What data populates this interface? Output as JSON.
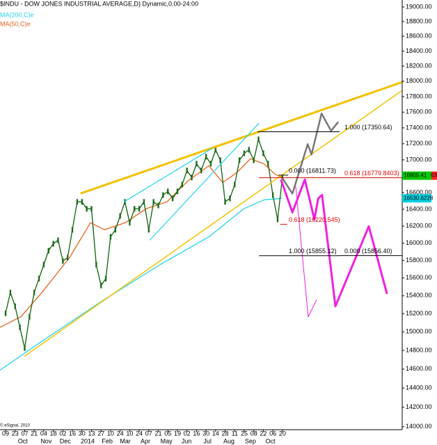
{
  "chart_data": {
    "type": "line",
    "title": "$INDU - DOW JONES INDUSTRIAL AVERAGE,D) Dynamic,0.00-24:00",
    "footer": "© eSignal, 2010",
    "log_y": true,
    "ylim": [
      13970,
      19096
    ],
    "xlim": [
      -1.17,
      83.1
    ],
    "yticks": [
      {
        "value": 14000,
        "label": "14000.00"
      },
      {
        "value": 14200,
        "label": "14200.00"
      },
      {
        "value": 14400,
        "label": "14400.00"
      },
      {
        "value": 14600,
        "label": "14600.00"
      },
      {
        "value": 14800,
        "label": "14800.00"
      },
      {
        "value": 15000,
        "label": "15000.00"
      },
      {
        "value": 15200,
        "label": "15200.00"
      },
      {
        "value": 15400,
        "label": "15400.00"
      },
      {
        "value": 15600,
        "label": "15600.00"
      },
      {
        "value": 15800,
        "label": "15800.00"
      },
      {
        "value": 16000,
        "label": "16000.00"
      },
      {
        "value": 16200,
        "label": "16200.00"
      },
      {
        "value": 16400,
        "label": "16400.00"
      },
      {
        "value": 16600,
        "label": "16600.00"
      },
      {
        "value": 16800,
        "label": "16800.00"
      },
      {
        "value": 17000,
        "label": "17000.00"
      },
      {
        "value": 17200,
        "label": "17200.00"
      },
      {
        "value": 17400,
        "label": "17400.00"
      },
      {
        "value": 17600,
        "label": "17600.00"
      },
      {
        "value": 17800,
        "label": "17800.00"
      },
      {
        "value": 18000,
        "label": "18000.00"
      },
      {
        "value": 18200,
        "label": "18200.00"
      },
      {
        "value": 18400,
        "label": "18400.00"
      },
      {
        "value": 18600,
        "label": "18600.00"
      },
      {
        "value": 18800,
        "label": "18800.00"
      },
      {
        "value": 19000,
        "label": "19000.00"
      }
    ],
    "xticks": [
      {
        "value": 0,
        "label": "09"
      },
      {
        "value": 2,
        "label": "23"
      },
      {
        "value": 4,
        "label": "07"
      },
      {
        "value": 6,
        "label": "21"
      },
      {
        "value": 8,
        "label": "04"
      },
      {
        "value": 10,
        "label": "18"
      },
      {
        "value": 12,
        "label": "02"
      },
      {
        "value": 14,
        "label": "16"
      },
      {
        "value": 16,
        "label": "30"
      },
      {
        "value": 18,
        "label": "13"
      },
      {
        "value": 20,
        "label": "27"
      },
      {
        "value": 22,
        "label": "10"
      },
      {
        "value": 24,
        "label": "24"
      },
      {
        "value": 26,
        "label": "10"
      },
      {
        "value": 28,
        "label": "24"
      },
      {
        "value": 30,
        "label": "07"
      },
      {
        "value": 32,
        "label": "21"
      },
      {
        "value": 34,
        "label": "05"
      },
      {
        "value": 36,
        "label": "19"
      },
      {
        "value": 38,
        "label": "02"
      },
      {
        "value": 40,
        "label": "16"
      },
      {
        "value": 42,
        "label": "30"
      },
      {
        "value": 44,
        "label": "14"
      },
      {
        "value": 46,
        "label": "28"
      },
      {
        "value": 48,
        "label": "11"
      },
      {
        "value": 50,
        "label": "25"
      },
      {
        "value": 52,
        "label": "08"
      },
      {
        "value": 54,
        "label": "22"
      },
      {
        "value": 56,
        "label": "06"
      },
      {
        "value": 58,
        "label": "20"
      }
    ],
    "month_ticks": [
      {
        "value": 3.6,
        "label": "Oct"
      },
      {
        "value": 8.5,
        "label": "Nov"
      },
      {
        "value": 12.5,
        "label": "Dec"
      },
      {
        "value": 17.2,
        "label": "2014"
      },
      {
        "value": 21.3,
        "label": "Feb"
      },
      {
        "value": 25.1,
        "label": "Mar"
      },
      {
        "value": 29.3,
        "label": "Apr"
      },
      {
        "value": 33.7,
        "label": "May"
      },
      {
        "value": 37.9,
        "label": "Jun"
      },
      {
        "value": 42.3,
        "label": "Jul"
      },
      {
        "value": 46.8,
        "label": "Aug"
      },
      {
        "value": 51.3,
        "label": "Sep"
      },
      {
        "value": 55.5,
        "label": "Oct"
      }
    ],
    "price": {
      "color": "#1d6b1d",
      "x": [
        0,
        1,
        2,
        3,
        4,
        5,
        6,
        7,
        8,
        9,
        10,
        11,
        12,
        13,
        14,
        15,
        16,
        17,
        18,
        19,
        20,
        21,
        22,
        23,
        24,
        25,
        26,
        27,
        28,
        29,
        30,
        31,
        32,
        33,
        34,
        35,
        36,
        37,
        38,
        39,
        40,
        41,
        42,
        43,
        44,
        45,
        46,
        47,
        48,
        49,
        50,
        51,
        52,
        53,
        54,
        55,
        56,
        57,
        58
      ],
      "values": [
        15204,
        15436,
        15282,
        15050,
        14824,
        15166,
        15436,
        15593,
        15753,
        15913,
        15994,
        16034,
        15793,
        15833,
        16157,
        16488,
        16488,
        16405,
        16405,
        15753,
        15515,
        15593,
        16074,
        16157,
        16321,
        16488,
        16240,
        16405,
        16405,
        16488,
        16157,
        16488,
        16445,
        16570,
        16614,
        16530,
        16614,
        16697,
        16869,
        16783,
        16953,
        16869,
        17039,
        16953,
        17125,
        16995,
        16488,
        16530,
        16697,
        16995,
        17081,
        17125,
        16995,
        17256,
        17081,
        16953,
        16570,
        16279,
        16783
      ]
    },
    "series": [
      {
        "name": "MA(200,C)e",
        "color": "#22d3e8",
        "x": [
          -1.2,
          7.6,
          20.7,
          32.4,
          42.6,
          49.9,
          54.2,
          57.9
        ],
        "values": [
          14587,
          14898,
          15357,
          15753,
          16074,
          16405,
          16513,
          16530
        ]
      },
      {
        "name": "MA(50,C)e",
        "color": "#e8641e",
        "x": [
          -1.2,
          3.2,
          7.6,
          13.4,
          17.8,
          20.7,
          25.1,
          29.4,
          33.8,
          38.2,
          42.6,
          45.5,
          48.4,
          51.3,
          54.2,
          56.4,
          57.9
        ],
        "values": [
          15050,
          15166,
          15436,
          15833,
          16240,
          16157,
          16240,
          16405,
          16488,
          16741,
          16927,
          16722,
          16841,
          17014,
          16948,
          16825,
          16783
        ]
      }
    ],
    "lines": [
      {
        "color": "#f2c200",
        "width": 3,
        "x": [
          15.7,
          83.1
        ],
        "y": [
          16589,
          17989
        ]
      },
      {
        "color": "#f2c200",
        "width": 1.5,
        "x": [
          3.9,
          83.1
        ],
        "y": [
          14735,
          17881
        ]
      },
      {
        "color": "#22d3e8",
        "width": 1.2,
        "x": [
          30.2,
          53.1
        ],
        "y": [
          16034,
          17459
        ]
      },
      {
        "color": "#22d3e8",
        "width": 1.2,
        "x": [
          24.8,
          43.3
        ],
        "y": [
          16488,
          17143
        ]
      },
      {
        "color": "#777777",
        "width": 2.5,
        "x": [
          57.9,
          60.1,
          63.3,
          64.1,
          66.2,
          68.2,
          69.7
        ],
        "y": [
          16783,
          16587,
          17195,
          17066,
          17583,
          17362,
          17476
        ]
      },
      {
        "color": "#f020e0",
        "width": 3,
        "x": [
          57.7,
          60.1,
          62.7,
          64.7,
          65.5,
          66.3,
          69.1,
          76.1,
          79.9
        ],
        "y": [
          16758,
          16363,
          16758,
          16279,
          16530,
          16572,
          15282,
          16197,
          15420
        ]
      },
      {
        "color": "#f020e0",
        "width": 1,
        "x": [
          60.8,
          63.4,
          65.2
        ],
        "y": [
          16673,
          15166,
          15357
        ]
      }
    ],
    "fib_levels": [
      {
        "value": 17350.64,
        "label": "1.000 (17350.64)",
        "color": "#000000",
        "x": [
          52.8,
          70.0
        ]
      },
      {
        "value": 16779.8403,
        "label": "0.618 (16779.8403)",
        "color": "#e00000",
        "x": [
          53.1,
          83.1
        ]
      },
      {
        "value": 16811.73,
        "label": "0.000 (16811.73)",
        "color": "#000000",
        "x": [
          57.2,
          59.2
        ]
      },
      {
        "value": 16220.545,
        "label": "0.618 (16220.545)",
        "color": "#e00000",
        "x": [
          57.5,
          59.0
        ]
      },
      {
        "value": 15855.12,
        "label": "1.000 (15855.12)",
        "color": "#000000",
        "x": [
          53.1,
          70.0
        ]
      },
      {
        "value": 15856.4,
        "label": "0.000 (15856.40)",
        "color": "#000000",
        "x": [
          70.0,
          83.1
        ]
      }
    ],
    "price_tags": [
      {
        "value": 16805.41,
        "color": "#00c800"
      },
      {
        "value": 16530.6228,
        "color": "#00d0e0"
      }
    ],
    "edge_tag": {
      "label": "63",
      "color": "#ff2a2a"
    }
  }
}
